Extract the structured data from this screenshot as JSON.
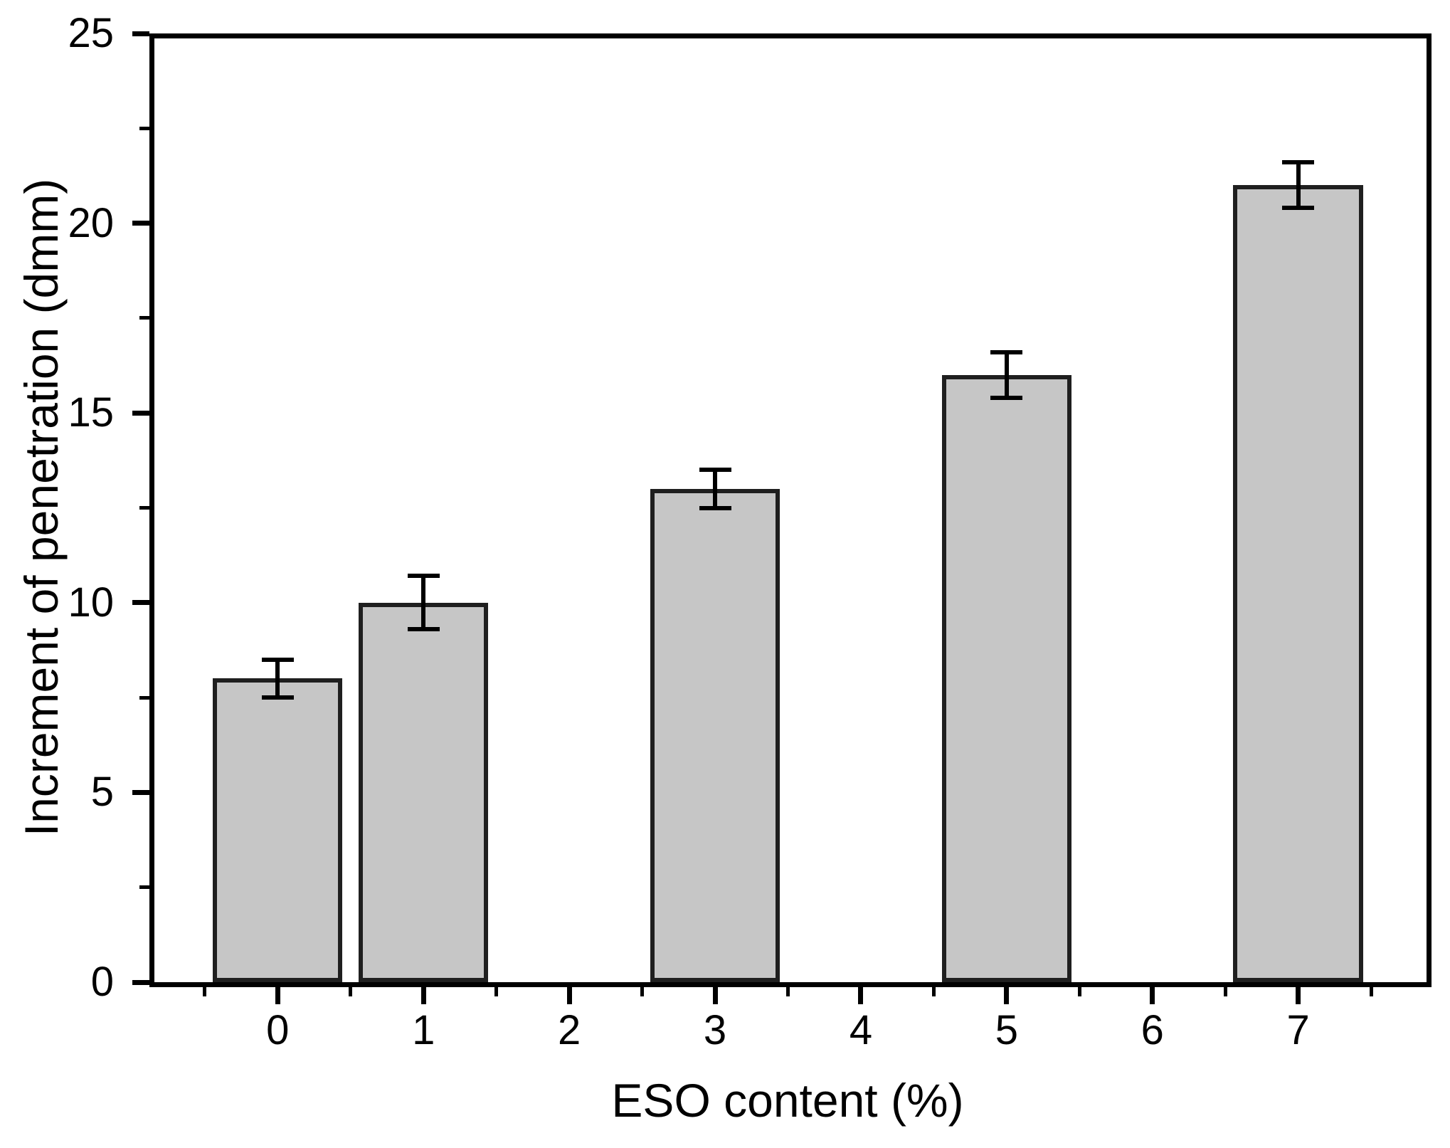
{
  "chart_data": {
    "type": "bar",
    "title": "",
    "xlabel": "ESO content (%)",
    "ylabel": "Increment of penetration (dmm)",
    "categories": [
      0,
      1,
      2,
      3,
      4,
      5,
      6,
      7
    ],
    "values": [
      8,
      10,
      null,
      13,
      null,
      16,
      null,
      21
    ],
    "errors": [
      0.5,
      0.7,
      null,
      0.5,
      null,
      0.6,
      null,
      0.6
    ],
    "bars": [
      {
        "x": 0,
        "value": 8,
        "error": 0.5
      },
      {
        "x": 1,
        "value": 10,
        "error": 0.7
      },
      {
        "x": 3,
        "value": 13,
        "error": 0.5
      },
      {
        "x": 5,
        "value": 16,
        "error": 0.6
      },
      {
        "x": 7,
        "value": 21,
        "error": 0.6
      }
    ],
    "xlim": [
      -0.88,
      7.88
    ],
    "ylim": [
      0,
      25
    ],
    "x_major_ticks": [
      0,
      1,
      2,
      3,
      4,
      5,
      6,
      7
    ],
    "x_tick_labels": [
      "0",
      "1",
      "2",
      "3",
      "4",
      "5",
      "6",
      "7"
    ],
    "x_minor_ticks": [
      -0.5,
      0.5,
      1.5,
      2.5,
      3.5,
      4.5,
      5.5,
      6.5,
      7.5
    ],
    "y_major_ticks": [
      0,
      5,
      10,
      15,
      20,
      25
    ],
    "y_tick_labels": [
      "0",
      "5",
      "10",
      "15",
      "20",
      "25"
    ],
    "y_minor_ticks": [
      2.5,
      7.5,
      12.5,
      17.5,
      22.5
    ],
    "bar_width": 0.89,
    "error_cap_width": 0.22,
    "grid": false,
    "legend_position": "none",
    "colors": {
      "bar_fill": "#c6c6c6",
      "bar_border": "#1f1f1f",
      "error_bar": "#000000",
      "axis": "#000000",
      "text": "#000000",
      "background": "#ffffff"
    }
  }
}
